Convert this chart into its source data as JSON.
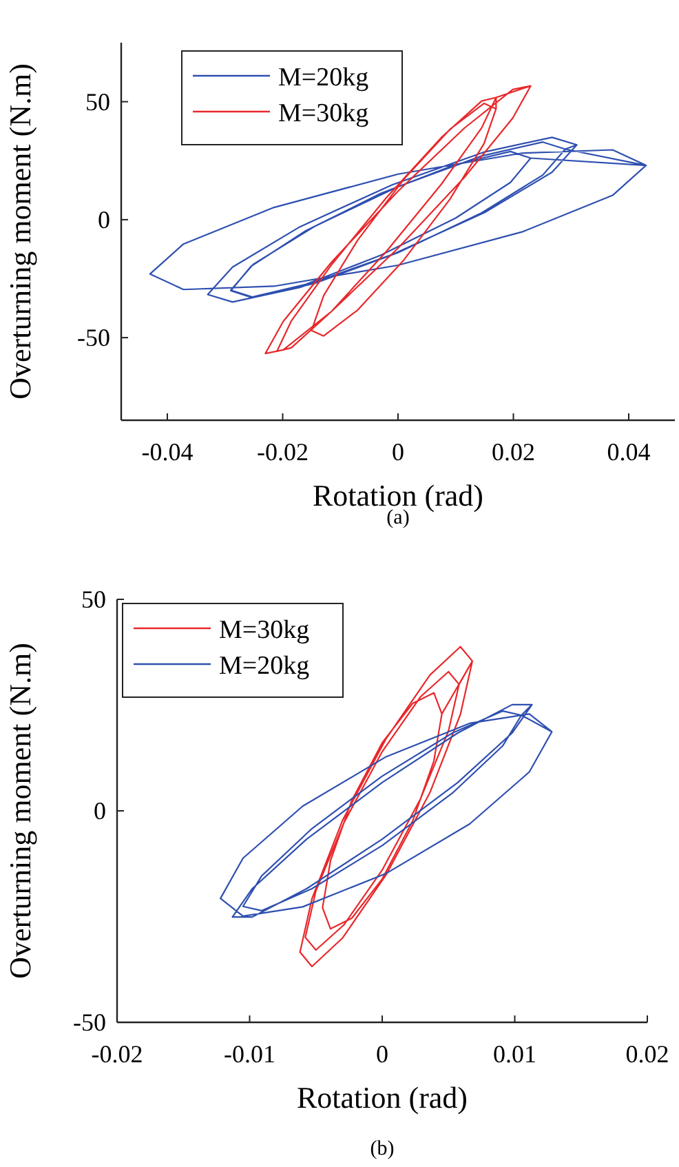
{
  "chart_data": [
    {
      "type": "line",
      "xlabel": "Rotation (rad)",
      "ylabel": "Overturning moment (N.m)",
      "xlim": [
        -0.048,
        0.048
      ],
      "ylim": [
        -85,
        75
      ],
      "xticks": [
        -0.04,
        -0.02,
        0,
        0.02,
        0.04
      ],
      "yticks": [
        -50,
        0,
        50
      ],
      "legend": "top left",
      "grid": false,
      "marker": "none",
      "line_style": "solid",
      "annotations": [
        "(a)"
      ],
      "series": [
        {
          "name": "M=20kg",
          "color": "#2e4fb0",
          "x": [
            0.031,
            0.0267,
            0.015,
            -0.001,
            -0.017,
            -0.0287,
            -0.033,
            -0.0287,
            -0.017,
            -0.001,
            0.015,
            0.0267,
            0.031,
            0.029,
            0.0251,
            0.0145,
            0,
            -0.0145,
            -0.0251,
            -0.029,
            -0.0251,
            -0.0145,
            0,
            0.0145,
            0.0251,
            0.029,
            0.043,
            0.0372,
            0.0215,
            0,
            -0.0215,
            -0.0372,
            -0.043,
            -0.0372,
            -0.0215,
            0,
            0.0215,
            0.0372,
            0.043,
            0.023,
            0.0195,
            0.01,
            -0.003,
            -0.016,
            -0.0255,
            -0.029,
            -0.0255,
            -0.016,
            -0.003,
            0.01,
            0.0195,
            0.023
          ],
          "values": [
            31.7,
            20.1,
            3,
            -14.8,
            -28.7,
            -34.9,
            -31.7,
            -20.1,
            -3,
            14.8,
            28.7,
            34.9,
            31.7,
            29.9,
            18.9,
            2.9,
            -14,
            -27,
            -32.9,
            -29.9,
            -18.9,
            -2.9,
            14,
            27,
            32.9,
            29.9,
            23,
            10.3,
            -5.2,
            -19.3,
            -28.2,
            -29.6,
            -23,
            -10.3,
            5.2,
            19.3,
            28.2,
            29.6,
            23,
            26.1,
            15.8,
            0.7,
            -15.1,
            -27.4,
            -32.9,
            -30.1,
            -19.8,
            -4.7,
            11.1,
            23.4,
            28.9,
            26.1
          ]
        },
        {
          "name": "M=30kg",
          "color": "#e8282b",
          "x": [
            0.023,
            0.0199,
            0.0115,
            0,
            -0.0115,
            -0.0199,
            -0.023,
            -0.0199,
            -0.0115,
            0,
            0.0115,
            0.0199,
            0.023,
            0.017,
            0.0145,
            0.0075,
            -0.002,
            -0.0115,
            -0.0185,
            -0.021,
            -0.0185,
            -0.0115,
            -0.002,
            0.0075,
            0.0145,
            0.017,
            0.017,
            0.0149,
            0.009,
            0.001,
            -0.007,
            -0.0129,
            -0.015,
            -0.0129,
            -0.007,
            0.001,
            0.009,
            0.0149,
            0.017
          ],
          "values": [
            56.7,
            43.1,
            17.9,
            -12.1,
            -38.8,
            -55.2,
            -56.7,
            -43.1,
            -17.9,
            12.1,
            38.8,
            55.2,
            56.7,
            51.8,
            38.9,
            15,
            -13.4,
            -38.8,
            -54.3,
            -55.8,
            -42.9,
            -19,
            9.4,
            34.8,
            50.3,
            51.8,
            47,
            32.2,
            8.7,
            -17.1,
            -38.3,
            -49.3,
            -47,
            -32.2,
            -8.7,
            17.1,
            38.3,
            49.3,
            47
          ]
        }
      ]
    },
    {
      "type": "line",
      "xlabel": "Rotation (rad)",
      "ylabel": "Overturning moment (N.m)",
      "xlim": [
        -0.02,
        0.02
      ],
      "ylim": [
        -50,
        50
      ],
      "xticks": [
        -0.02,
        -0.01,
        0,
        0.01,
        0.02
      ],
      "yticks": [
        -50,
        0,
        50
      ],
      "legend": "top left",
      "grid": false,
      "marker": "none",
      "line_style": "solid",
      "annotations": [
        "(b)"
      ],
      "series": [
        {
          "name": "M=30kg",
          "color": "#e8282b",
          "x": [
            0.0058,
            0.005,
            0.0029,
            0,
            -0.0029,
            -0.005,
            -0.0058,
            -0.005,
            -0.0029,
            0,
            0.0029,
            0.005,
            0.0058,
            0.0068,
            0.0059,
            0.0036,
            0.0003,
            -0.003,
            -0.0053,
            -0.0062,
            -0.0053,
            -0.003,
            0.0003,
            0.0036,
            0.0059,
            0.0068,
            0.0045,
            0.0039,
            0.0023,
            0,
            -0.0023,
            -0.0039,
            -0.0045,
            -0.0039,
            -0.0023,
            0,
            0.0023,
            0.0039,
            0.0045
          ],
          "values": [
            29.9,
            18.9,
            2.9,
            -14,
            -27,
            -32.9,
            -29.9,
            -18.9,
            -2.9,
            14,
            27,
            32.9,
            29.9,
            35.4,
            22.8,
            4.3,
            -15.1,
            -30.1,
            -36.8,
            -33.4,
            -20.8,
            -2.3,
            17.1,
            32.1,
            38.8,
            35.4,
            22.9,
            11.8,
            -2.4,
            -16.1,
            -25.4,
            -27.9,
            -22.9,
            -11.8,
            2.4,
            16.1,
            25.4,
            27.9,
            22.9
          ]
        },
        {
          "name": "M=20kg",
          "color": "#2e4fb0",
          "x": [
            0.0113,
            0.0098,
            0.0057,
            0,
            -0.0057,
            -0.0098,
            -0.0113,
            -0.0098,
            -0.0057,
            0,
            0.0057,
            0.0098,
            0.0113,
            0.0105,
            0.0091,
            0.0053,
            0,
            -0.0053,
            -0.0091,
            -0.0105,
            -0.0091,
            -0.0053,
            0,
            0.0053,
            0.0091,
            0.0105,
            0.0128,
            0.0111,
            0.0066,
            0.0003,
            -0.006,
            -0.0105,
            -0.0122,
            -0.0105,
            -0.006,
            0.0003,
            0.0066,
            0.0111,
            0.0128
          ],
          "values": [
            25.1,
            18.4,
            6.7,
            -6.7,
            -18.4,
            -25.1,
            -25.1,
            -18.4,
            -6.7,
            6.7,
            18.4,
            25.1,
            25.1,
            22.6,
            15.4,
            4.2,
            -8.2,
            -18.4,
            -23.6,
            -22.6,
            -15.4,
            -4.2,
            8.2,
            18.4,
            23.6,
            22.6,
            18.7,
            9.2,
            -3.1,
            -14.8,
            -22.7,
            -24.9,
            -20.7,
            -11.2,
            1.1,
            12.8,
            20.7,
            22.9,
            18.7
          ]
        }
      ]
    }
  ]
}
